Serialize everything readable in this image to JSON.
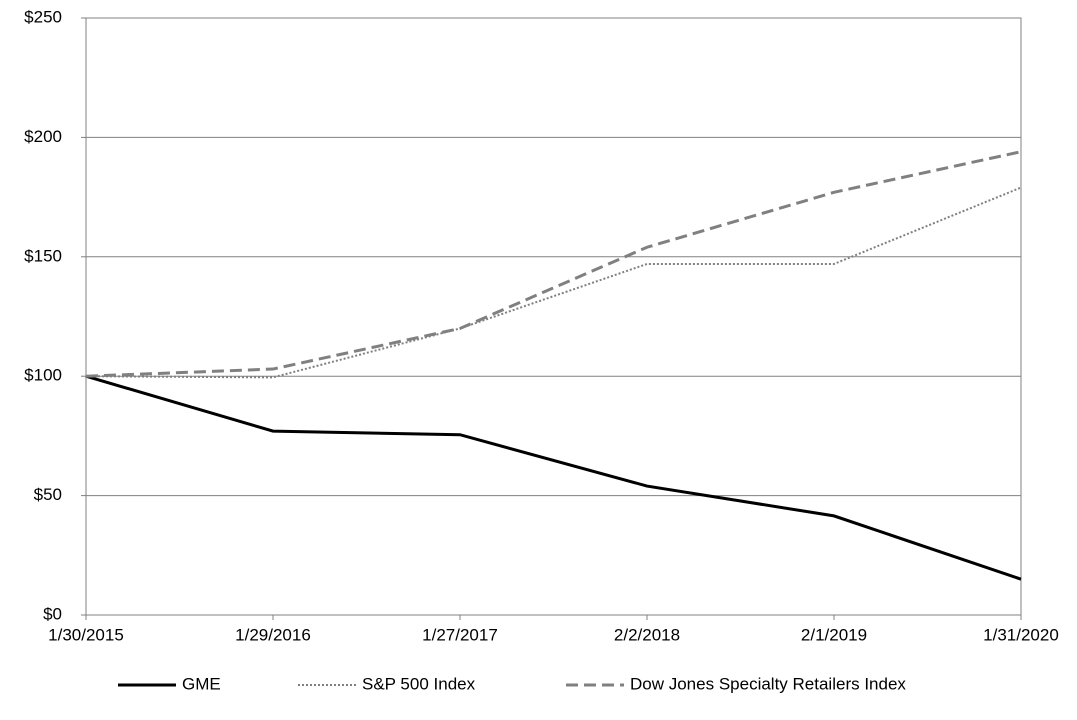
{
  "chart_data": {
    "type": "line",
    "categories": [
      "1/30/2015",
      "1/29/2016",
      "1/27/2017",
      "2/2/2018",
      "2/1/2019",
      "1/31/2020"
    ],
    "series": [
      {
        "name": "GME",
        "color": "#000000",
        "dash": "solid",
        "values": [
          100,
          77,
          75.5,
          54,
          41.5,
          15
        ]
      },
      {
        "name": "S&P 500 Index",
        "color": "#808080",
        "dash": "dotted",
        "values": [
          100,
          99.5,
          120,
          147,
          147,
          179
        ]
      },
      {
        "name": "Dow Jones Specialty Retailers Index",
        "color": "#808080",
        "dash": "dashed",
        "values": [
          100,
          103,
          120,
          154,
          177,
          194
        ]
      }
    ],
    "ylim": [
      0,
      250
    ],
    "yticks": [
      {
        "value": 0,
        "label": "$0"
      },
      {
        "value": 50,
        "label": "$50"
      },
      {
        "value": 100,
        "label": "$100"
      },
      {
        "value": 150,
        "label": "$150"
      },
      {
        "value": 200,
        "label": "$200"
      },
      {
        "value": 250,
        "label": "$250"
      }
    ],
    "grid": true,
    "legend": "bottom"
  }
}
